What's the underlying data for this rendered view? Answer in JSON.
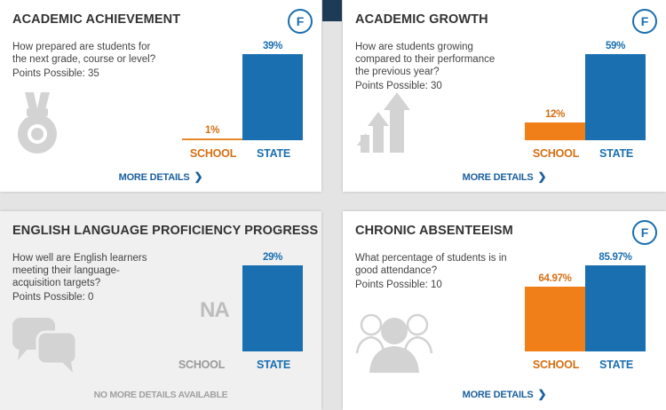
{
  "cards": [
    {
      "title": "ACADEMIC ACHIEVEMENT",
      "grade": "F",
      "question": "How prepared are students for the next grade, course or level?",
      "points": "Points Possible: 35",
      "icon": "medal-icon",
      "school_label": "SCHOOL",
      "state_label": "STATE",
      "link": "MORE DETAILS"
    },
    {
      "title": "ACADEMIC GROWTH",
      "grade": "F",
      "question": "How are students growing compared to their performance the previous year?",
      "points": "Points Possible: 30",
      "icon": "growth-arrow-icon",
      "school_label": "SCHOOL",
      "state_label": "STATE",
      "link": "MORE DETAILS"
    },
    {
      "title": "ENGLISH LANGUAGE PROFICIENCY PROGRESS",
      "question": "How well are English learners meeting their language-acquisition targets?",
      "points": "Points Possible: 0",
      "icon": "speech-bubbles-icon",
      "na": "NA",
      "school_label": "SCHOOL",
      "state_label": "STATE",
      "link": "NO MORE DETAILS AVAILABLE"
    },
    {
      "title": "CHRONIC ABSENTEEISM",
      "grade": "F",
      "question": "What percentage of students is in good attendance?",
      "points": "Points Possible: 10",
      "icon": "people-group-icon",
      "school_label": "SCHOOL",
      "state_label": "STATE",
      "link": "MORE DETAILS"
    }
  ],
  "chart_data": [
    {
      "type": "bar",
      "categories": [
        "SCHOOL",
        "STATE"
      ],
      "values": [
        1,
        39
      ],
      "labels": [
        "1%",
        "39%"
      ],
      "ylim": [
        0,
        39
      ],
      "colors": [
        "#f07f1a",
        "#1a6fb0"
      ]
    },
    {
      "type": "bar",
      "categories": [
        "SCHOOL",
        "STATE"
      ],
      "values": [
        12,
        59
      ],
      "labels": [
        "12%",
        "59%"
      ],
      "ylim": [
        0,
        59
      ],
      "colors": [
        "#f07f1a",
        "#1a6fb0"
      ]
    },
    {
      "type": "bar",
      "categories": [
        "SCHOOL",
        "STATE"
      ],
      "values": [
        null,
        29
      ],
      "labels": [
        "",
        "29%"
      ],
      "ylim": [
        0,
        29
      ],
      "colors": [
        "#f07f1a",
        "#1a6fb0"
      ]
    },
    {
      "type": "bar",
      "categories": [
        "SCHOOL",
        "STATE"
      ],
      "values": [
        64.97,
        85.97
      ],
      "labels": [
        "64.97%",
        "85.97%"
      ],
      "ylim": [
        0,
        85.97
      ],
      "colors": [
        "#f07f1a",
        "#1a6fb0"
      ]
    }
  ]
}
